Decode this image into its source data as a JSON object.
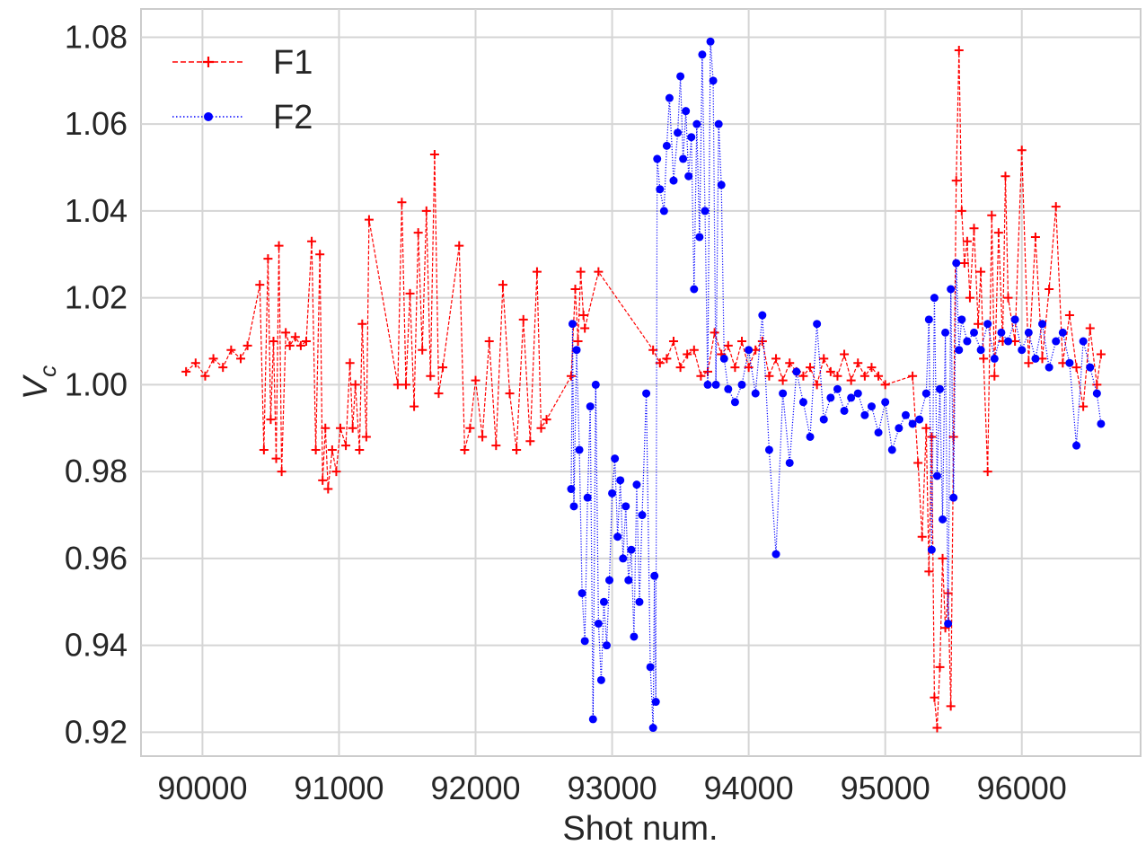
{
  "chart_data": {
    "type": "line",
    "title": "",
    "xlabel": "Shot num.",
    "ylabel_main": "V",
    "ylabel_sub": "c",
    "xlim": [
      89550,
      96870
    ],
    "ylim": [
      0.9145,
      1.0865
    ],
    "xticks": [
      90000,
      91000,
      92000,
      93000,
      94000,
      95000,
      96000
    ],
    "xtick_labels": [
      "90000",
      "91000",
      "92000",
      "93000",
      "94000",
      "95000",
      "96000"
    ],
    "yticks": [
      0.92,
      0.94,
      0.96,
      0.98,
      1.0,
      1.02,
      1.04,
      1.06,
      1.08
    ],
    "ytick_labels": [
      "0.92",
      "0.94",
      "0.96",
      "0.98",
      "1.00",
      "1.02",
      "1.04",
      "1.06",
      "1.08"
    ],
    "grid": true,
    "legend_position": "top-left",
    "series": [
      {
        "name": "F1",
        "color": "#ff0000",
        "linestyle": "dashed",
        "marker": "plus",
        "x": [
          89880,
          89950,
          90020,
          90080,
          90150,
          90210,
          90280,
          90330,
          90420,
          90450,
          90480,
          90500,
          90520,
          90540,
          90560,
          90580,
          90610,
          90640,
          90680,
          90720,
          90760,
          90800,
          90830,
          90860,
          90880,
          90900,
          90920,
          90950,
          90980,
          91010,
          91050,
          91080,
          91100,
          91120,
          91150,
          91170,
          91200,
          91220,
          91430,
          91460,
          91490,
          91520,
          91550,
          91580,
          91610,
          91640,
          91670,
          91700,
          91730,
          91760,
          91880,
          91920,
          91960,
          92000,
          92050,
          92100,
          92150,
          92200,
          92250,
          92300,
          92350,
          92400,
          92450,
          92480,
          92520,
          92700,
          92730,
          92750,
          92770,
          92790,
          92800,
          92900,
          93300,
          93350,
          93400,
          93450,
          93500,
          93550,
          93600,
          93650,
          93700,
          93750,
          93800,
          93850,
          93900,
          93950,
          94000,
          94050,
          94100,
          94150,
          94200,
          94250,
          94300,
          94350,
          94400,
          94450,
          94500,
          94550,
          94600,
          94650,
          94700,
          94750,
          94800,
          94850,
          94900,
          94950,
          95000,
          95200,
          95240,
          95270,
          95300,
          95320,
          95340,
          95360,
          95380,
          95400,
          95420,
          95440,
          95460,
          95480,
          95500,
          95520,
          95540,
          95560,
          95580,
          95600,
          95620,
          95650,
          95680,
          95700,
          95720,
          95750,
          95780,
          95800,
          95830,
          95860,
          95880,
          95900,
          95950,
          96000,
          96050,
          96100,
          96150,
          96200,
          96250,
          96300,
          96350,
          96400,
          96450,
          96500,
          96550,
          96580
        ],
        "y": [
          1.003,
          1.005,
          1.002,
          1.006,
          1.004,
          1.008,
          1.006,
          1.009,
          1.023,
          0.985,
          1.029,
          0.992,
          1.01,
          0.983,
          1.032,
          0.98,
          1.012,
          1.009,
          1.011,
          1.009,
          1.01,
          1.033,
          0.985,
          1.03,
          0.978,
          0.99,
          0.976,
          0.985,
          0.98,
          0.99,
          0.986,
          1.005,
          0.99,
          1.0,
          0.985,
          1.014,
          0.988,
          1.038,
          1.0,
          1.042,
          1.0,
          1.021,
          0.995,
          1.035,
          1.008,
          1.04,
          1.002,
          1.053,
          0.998,
          1.004,
          1.032,
          0.985,
          0.99,
          1.001,
          0.988,
          1.01,
          0.986,
          1.023,
          0.998,
          0.985,
          1.015,
          0.987,
          1.026,
          0.99,
          0.992,
          1.002,
          1.022,
          1.01,
          1.026,
          1.016,
          1.013,
          1.026,
          1.008,
          1.005,
          1.006,
          1.01,
          1.004,
          1.007,
          1.008,
          1.002,
          1.003,
          1.012,
          1.007,
          1.009,
          1.004,
          1.01,
          1.004,
          1.008,
          1.01,
          1.002,
          1.006,
          1.001,
          1.005,
          1.003,
          1.002,
          1.004,
          1.0,
          1.006,
          1.003,
          1.002,
          1.007,
          1.001,
          1.005,
          1.002,
          1.004,
          1.002,
          1.0,
          1.002,
          0.982,
          0.965,
          0.99,
          0.957,
          0.988,
          0.928,
          0.921,
          0.935,
          0.96,
          0.944,
          0.952,
          0.926,
          0.988,
          1.047,
          1.077,
          1.04,
          1.028,
          1.033,
          1.02,
          1.036,
          1.014,
          1.026,
          1.006,
          0.98,
          1.039,
          1.002,
          1.035,
          1.01,
          1.048,
          1.02,
          1.01,
          1.054,
          1.005,
          1.034,
          1.006,
          1.022,
          1.041,
          1.005,
          1.016,
          1.004,
          0.995,
          1.013,
          1.0,
          1.007
        ]
      },
      {
        "name": "F2",
        "color": "#0000ff",
        "linestyle": "dotted",
        "marker": "circle",
        "x": [
          92700,
          92710,
          92720,
          92740,
          92760,
          92780,
          92800,
          92820,
          92840,
          92860,
          92880,
          92900,
          92920,
          92940,
          92960,
          92980,
          93000,
          93020,
          93040,
          93060,
          93080,
          93100,
          93120,
          93140,
          93160,
          93180,
          93200,
          93220,
          93250,
          93280,
          93300,
          93310,
          93320,
          93330,
          93350,
          93380,
          93400,
          93420,
          93450,
          93480,
          93500,
          93520,
          93540,
          93560,
          93580,
          93600,
          93620,
          93640,
          93660,
          93680,
          93700,
          93720,
          93740,
          93760,
          93780,
          93800,
          93820,
          93850,
          93900,
          93950,
          94000,
          94050,
          94100,
          94150,
          94200,
          94250,
          94300,
          94350,
          94400,
          94450,
          94500,
          94550,
          94600,
          94650,
          94700,
          94750,
          94800,
          94850,
          94900,
          94950,
          95000,
          95050,
          95100,
          95150,
          95200,
          95250,
          95300,
          95320,
          95340,
          95360,
          95380,
          95400,
          95420,
          95440,
          95460,
          95480,
          95500,
          95520,
          95540,
          95560,
          95600,
          95650,
          95700,
          95750,
          95800,
          95850,
          95900,
          95950,
          96000,
          96050,
          96100,
          96150,
          96200,
          96250,
          96300,
          96350,
          96400,
          96450,
          96500,
          96550,
          96580
        ],
        "y": [
          0.976,
          1.014,
          0.972,
          1.008,
          0.985,
          0.952,
          0.941,
          0.974,
          0.995,
          0.923,
          1.0,
          0.945,
          0.932,
          0.95,
          0.94,
          0.955,
          0.975,
          0.983,
          0.965,
          0.978,
          0.96,
          0.972,
          0.955,
          0.962,
          0.942,
          0.977,
          0.95,
          0.97,
          0.998,
          0.935,
          0.921,
          0.956,
          0.927,
          1.052,
          1.045,
          1.04,
          1.055,
          1.066,
          1.047,
          1.058,
          1.071,
          1.052,
          1.063,
          1.048,
          1.057,
          1.022,
          1.06,
          1.034,
          1.076,
          1.04,
          1.0,
          1.079,
          1.07,
          1.0,
          1.06,
          1.046,
          1.006,
          0.999,
          0.996,
          1.0,
          1.008,
          0.998,
          1.016,
          0.985,
          0.961,
          0.998,
          0.982,
          1.003,
          0.996,
          0.988,
          1.014,
          0.992,
          0.997,
          0.999,
          0.994,
          0.997,
          0.998,
          0.993,
          0.995,
          0.989,
          0.996,
          0.985,
          0.99,
          0.993,
          0.991,
          0.992,
          0.998,
          1.015,
          0.962,
          1.02,
          0.979,
          0.999,
          0.969,
          1.012,
          0.945,
          1.022,
          0.974,
          1.028,
          1.008,
          1.015,
          1.01,
          1.012,
          1.008,
          1.014,
          1.006,
          1.012,
          1.01,
          1.015,
          1.008,
          1.012,
          1.006,
          1.014,
          1.004,
          1.01,
          1.012,
          1.005,
          0.986,
          1.01,
          1.004,
          0.998,
          0.991
        ]
      }
    ]
  }
}
